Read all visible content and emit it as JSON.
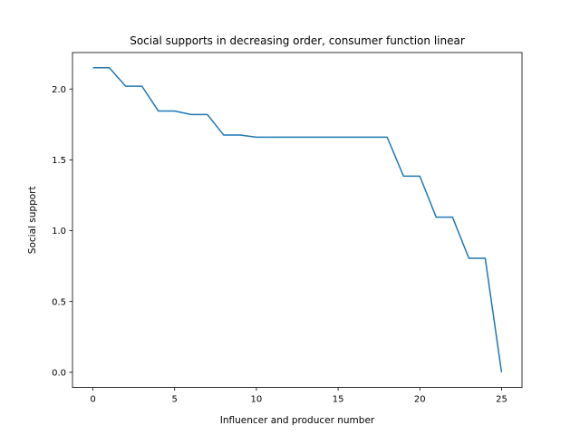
{
  "chart_data": {
    "type": "line",
    "title": "Social supports in decreasing order, consumer function linear",
    "xlabel": "Influencer and producer number",
    "ylabel": "Social support",
    "xlim": [
      -1.25,
      26.25
    ],
    "ylim": [
      -0.1075,
      2.2575
    ],
    "xticks": [
      0,
      5,
      10,
      15,
      20,
      25
    ],
    "xtick_labels": [
      "0",
      "5",
      "10",
      "15",
      "20",
      "25"
    ],
    "yticks": [
      0.0,
      0.5,
      1.0,
      1.5,
      2.0
    ],
    "ytick_labels": [
      "0.0",
      "0.5",
      "1.0",
      "1.5",
      "2.0"
    ],
    "grid": false,
    "series": [
      {
        "color": "#1f77b4",
        "x": [
          0,
          1,
          2,
          3,
          4,
          5,
          6,
          7,
          8,
          9,
          10,
          11,
          12,
          13,
          14,
          15,
          16,
          17,
          18,
          19,
          20,
          21,
          22,
          23,
          24,
          25
        ],
        "y": [
          2.15,
          2.15,
          2.02,
          2.02,
          1.845,
          1.845,
          1.82,
          1.82,
          1.675,
          1.675,
          1.66,
          1.66,
          1.66,
          1.66,
          1.66,
          1.66,
          1.66,
          1.66,
          1.66,
          1.385,
          1.385,
          1.095,
          1.095,
          0.805,
          0.805,
          0.0
        ]
      }
    ]
  }
}
